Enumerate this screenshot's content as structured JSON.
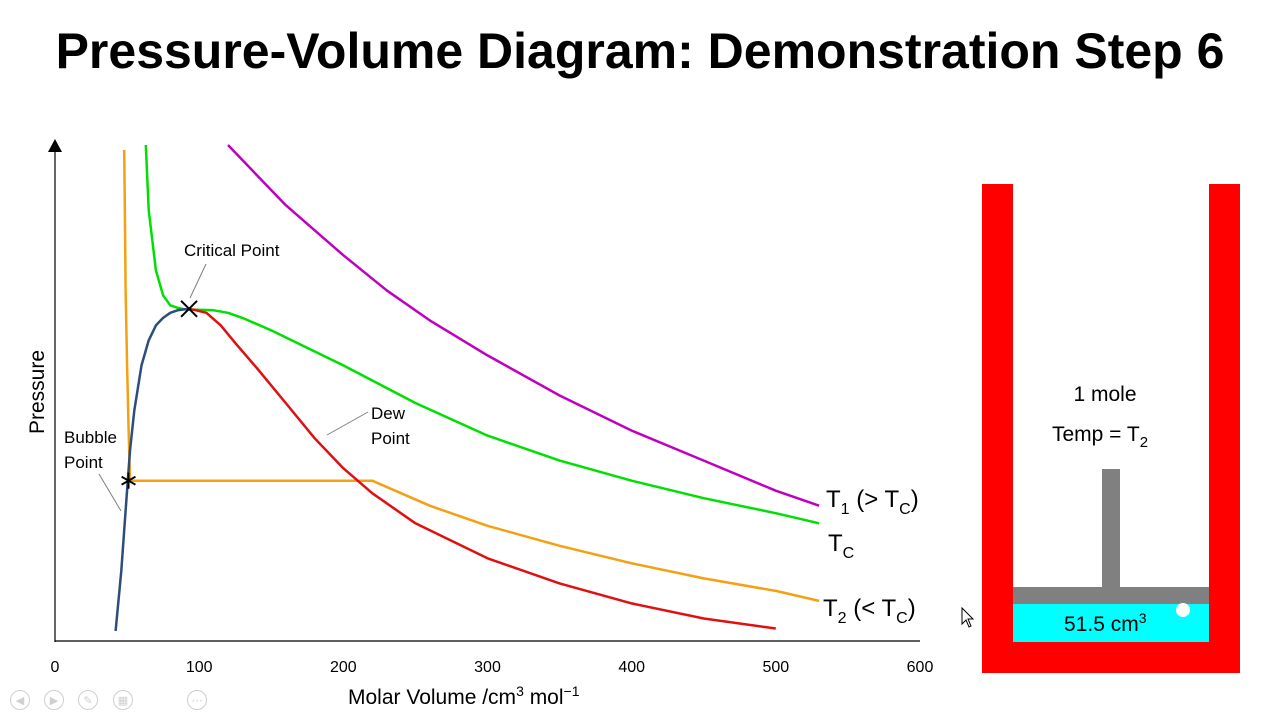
{
  "title": "Pressure-Volume Diagram: Demonstration Step 6",
  "chart_data": {
    "type": "line",
    "xlabel": "Molar Volume /cm",
    "xlabel_sup1": "3",
    "xlabel_mid": " mol",
    "xlabel_sup2": "−1",
    "ylabel": "Pressure",
    "xlim": [
      0,
      600
    ],
    "xticks": [
      0,
      100,
      200,
      300,
      400,
      500,
      600
    ],
    "grid": false,
    "series": [
      {
        "name": "T1 (> TC)",
        "color": "#c000c0",
        "x": [
          120,
          140,
          160,
          180,
          200,
          230,
          260,
          300,
          350,
          400,
          450,
          500,
          530
        ],
        "y": [
          0.99,
          0.93,
          0.87,
          0.82,
          0.77,
          0.7,
          0.64,
          0.57,
          0.49,
          0.42,
          0.36,
          0.3,
          0.27
        ]
      },
      {
        "name": "TC",
        "color": "#00e000",
        "x": [
          63,
          65,
          70,
          75,
          80,
          85,
          90,
          95,
          100,
          110,
          120,
          130,
          150,
          175,
          200,
          250,
          300,
          350,
          400,
          450,
          500,
          530
        ],
        "y": [
          0.99,
          0.86,
          0.74,
          0.69,
          0.67,
          0.665,
          0.662,
          0.661,
          0.661,
          0.66,
          0.655,
          0.645,
          0.62,
          0.585,
          0.55,
          0.475,
          0.41,
          0.36,
          0.32,
          0.285,
          0.255,
          0.235
        ]
      },
      {
        "name": "T2 (< TC)",
        "color": "#f4a012",
        "x": [
          48,
          48.5,
          49,
          50,
          51,
          52,
          220,
          240,
          260,
          280,
          300,
          350,
          400,
          450,
          500,
          530
        ],
        "y": [
          0.98,
          0.85,
          0.7,
          0.55,
          0.43,
          0.32,
          0.32,
          0.295,
          0.27,
          0.25,
          0.23,
          0.19,
          0.155,
          0.125,
          0.1,
          0.08
        ]
      },
      {
        "name": "Bubble curve",
        "color": "#2e4d7b",
        "x": [
          42,
          46,
          49,
          52,
          55,
          60,
          65,
          70,
          75,
          80,
          85,
          90,
          95
        ],
        "y": [
          0.02,
          0.14,
          0.26,
          0.38,
          0.46,
          0.55,
          0.6,
          0.63,
          0.645,
          0.655,
          0.66,
          0.662,
          0.662
        ]
      },
      {
        "name": "Dew curve",
        "color": "#e01010",
        "x": [
          95,
          105,
          115,
          125,
          140,
          160,
          180,
          200,
          220,
          250,
          300,
          350,
          400,
          450,
          500
        ],
        "y": [
          0.662,
          0.655,
          0.63,
          0.595,
          0.545,
          0.475,
          0.405,
          0.345,
          0.295,
          0.235,
          0.165,
          0.115,
          0.075,
          0.045,
          0.025
        ]
      }
    ],
    "critical_point": {
      "x": 93,
      "y": 0.663,
      "label": "Critical Point"
    },
    "bubble_point": {
      "x": 51,
      "y": 0.32,
      "label_line1": "Bubble",
      "label_line2": "Point"
    },
    "dew_point": {
      "x": 212,
      "y": 0.315,
      "label_line1": "Dew",
      "label_line2": "Point"
    },
    "curve_labels": [
      {
        "id": "t1",
        "main": "T",
        "sub": "1",
        "mid": " (> T",
        "sub2": "C",
        "end": ")",
        "color": "#000000"
      },
      {
        "id": "tc",
        "main": "T",
        "sub": "C",
        "mid": "",
        "sub2": "",
        "end": "",
        "color": "#000000"
      },
      {
        "id": "t2",
        "main": "T",
        "sub": "2",
        "mid": " (< T",
        "sub2": "C",
        "end": ")",
        "color": "#000000"
      }
    ]
  },
  "piston": {
    "moles": "1 mole",
    "temp_prefix": "Temp = T",
    "temp_sub": "2",
    "volume_value": "51.5 cm",
    "volume_sup": "3",
    "wall_color": "#ff0000",
    "piston_color": "#808080",
    "liquid_color": "#00ffff"
  },
  "controls": [
    "prev",
    "next",
    "pen",
    "pages",
    "more"
  ]
}
